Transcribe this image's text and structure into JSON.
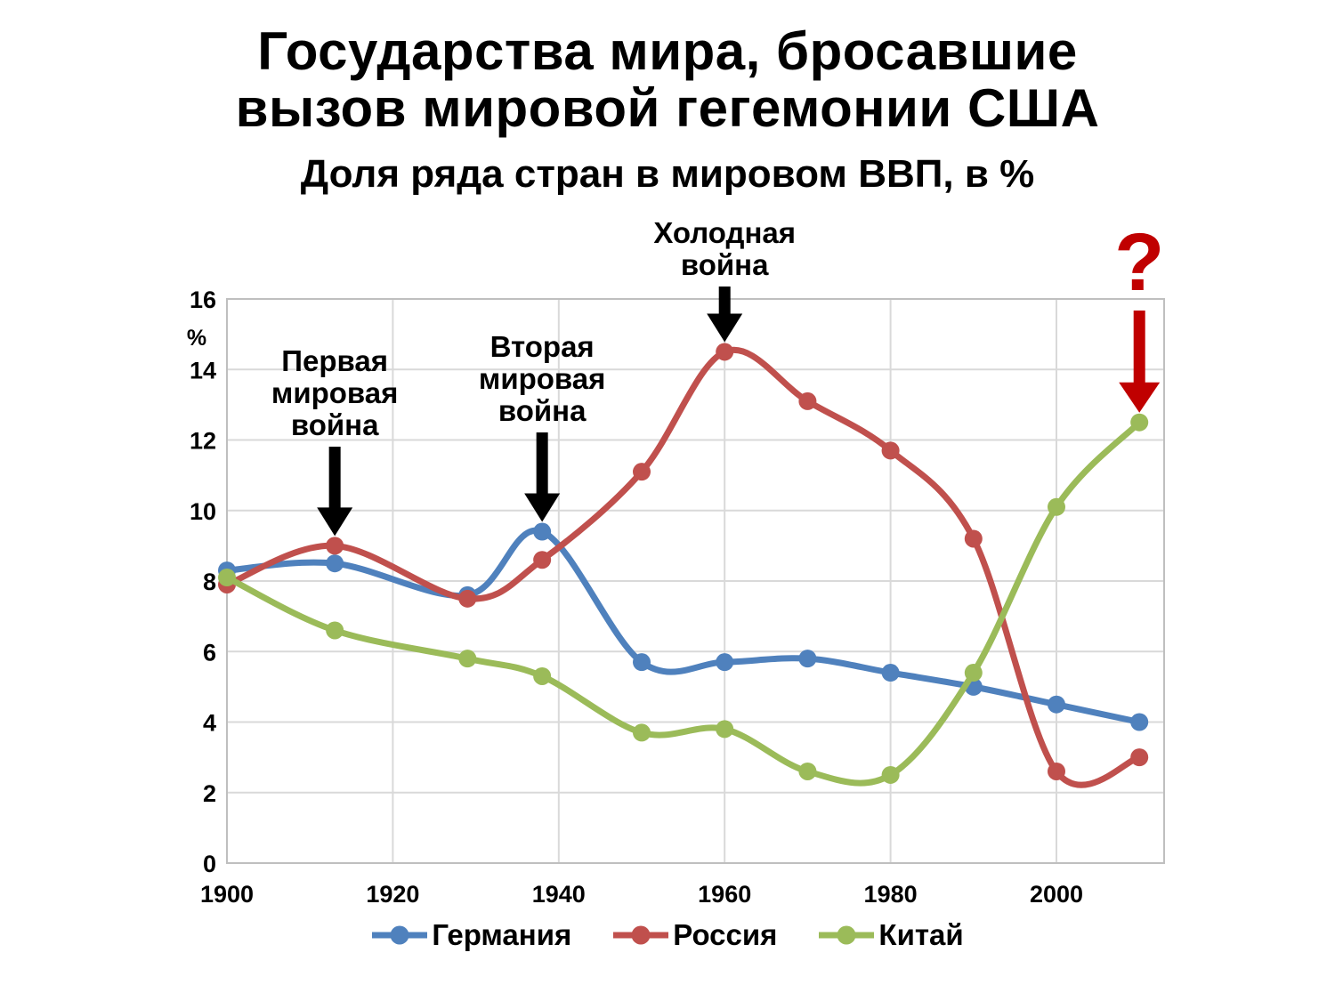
{
  "chart_data": {
    "type": "line",
    "title_lines": [
      "Государства мира, бросавшие",
      "вызов мировой гегемонии США"
    ],
    "subtitle": "Доля ряда стран в мировом ВВП, в %",
    "ylabel": "%",
    "ylim": [
      0,
      16
    ],
    "xlim": [
      1900,
      2013
    ],
    "y_ticks": [
      0,
      2,
      4,
      6,
      8,
      10,
      12,
      14,
      16
    ],
    "x_ticks": [
      1900,
      1920,
      1940,
      1960,
      1980,
      2000
    ],
    "grid": true,
    "smooth": true,
    "legend_position": "bottom",
    "x": [
      1900,
      1913,
      1929,
      1938,
      1950,
      1960,
      1970,
      1980,
      1990,
      2000,
      2010
    ],
    "series": [
      {
        "id": "germany",
        "name": "Германия",
        "color": "#4F81BD",
        "values": [
          8.3,
          8.5,
          7.6,
          9.4,
          5.7,
          5.7,
          5.8,
          5.4,
          5.0,
          4.5,
          4.0
        ]
      },
      {
        "id": "russia",
        "name": "Россия",
        "color": "#C0504D",
        "values": [
          7.9,
          9.0,
          7.5,
          8.6,
          11.1,
          14.5,
          13.1,
          11.7,
          9.2,
          2.6,
          3.0
        ]
      },
      {
        "id": "china",
        "name": "Китай",
        "color": "#9BBB59",
        "values": [
          8.1,
          6.6,
          5.8,
          5.3,
          3.7,
          3.8,
          2.6,
          2.5,
          5.4,
          10.1,
          12.5
        ]
      }
    ],
    "annotations": [
      {
        "id": "ww1",
        "lines": [
          "Первая",
          "мировая",
          "война"
        ],
        "color": "#000000",
        "target_year": 1913,
        "target_value": 9.0
      },
      {
        "id": "ww2",
        "lines": [
          "Вторая",
          "мировая",
          "война"
        ],
        "color": "#000000",
        "target_year": 1938,
        "target_value": 9.4
      },
      {
        "id": "cold-war",
        "lines": [
          "Холодная",
          "война"
        ],
        "color": "#000000",
        "target_year": 1960,
        "target_value": 14.5
      },
      {
        "id": "question",
        "lines": [
          "?"
        ],
        "color": "#C00000",
        "target_year": 2010,
        "target_value": 12.5
      }
    ],
    "colors": {
      "gridline": "#D9D9D9",
      "frame": "#BFBFBF",
      "text": "#000000",
      "question_accent": "#C00000"
    }
  }
}
